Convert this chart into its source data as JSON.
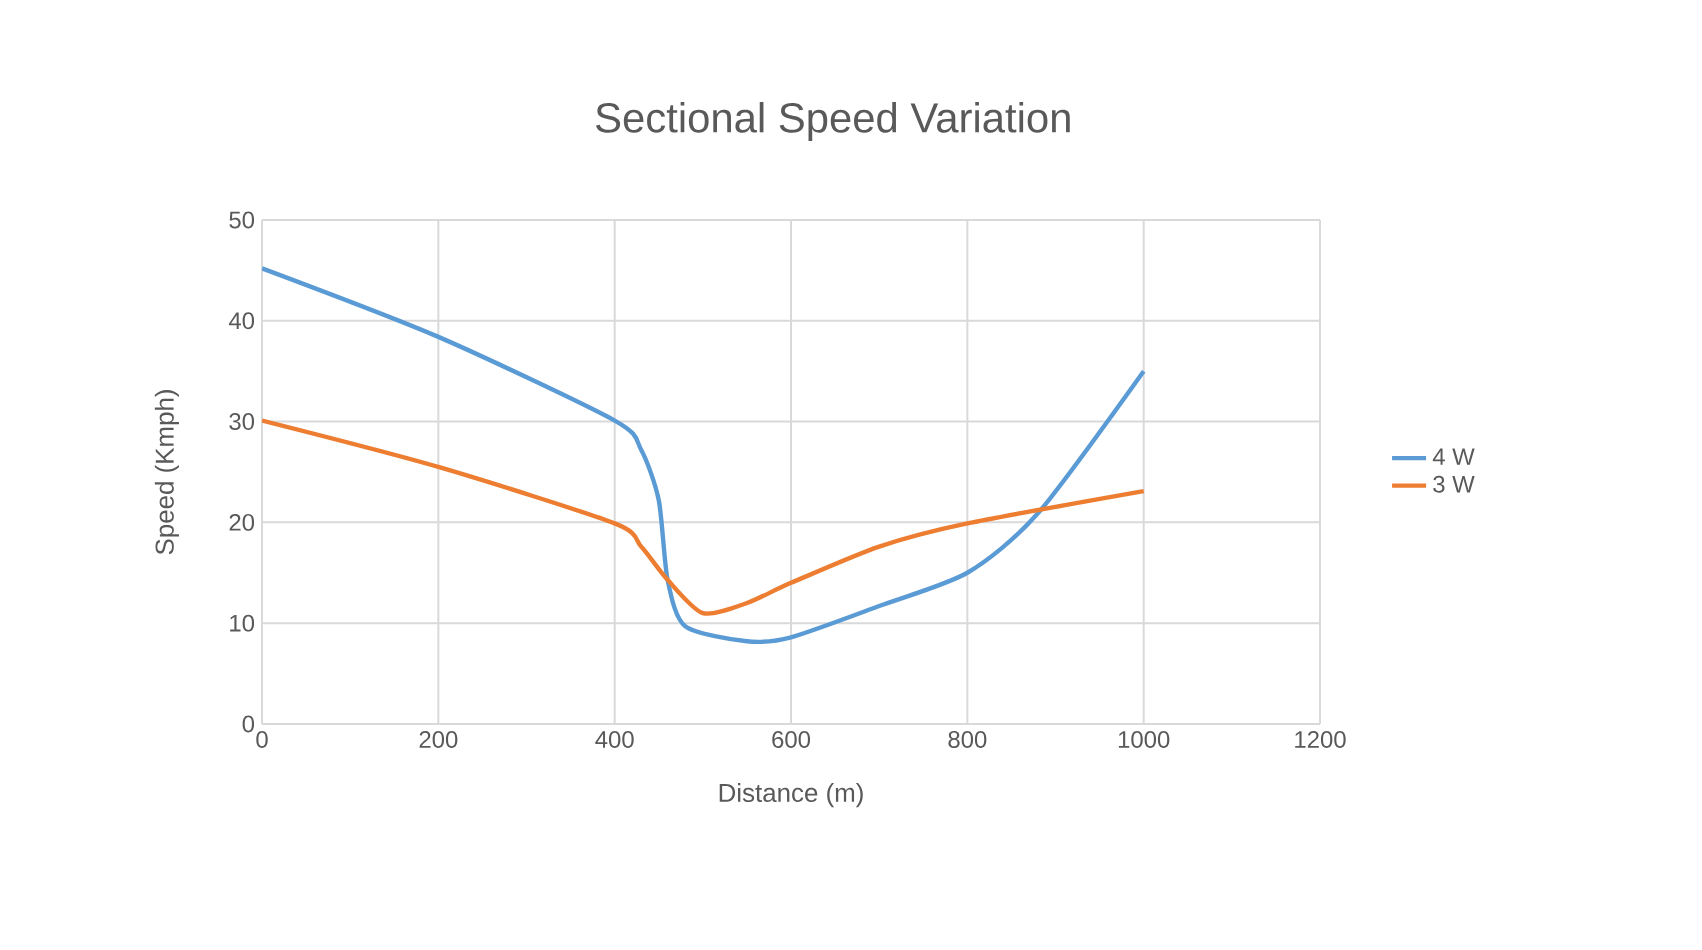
{
  "chart_data": {
    "type": "line",
    "title": "Sectional Speed Variation",
    "xlabel": "Distance (m)",
    "ylabel": "Speed (Kmph)",
    "xlim": [
      0,
      1200
    ],
    "xticks": [
      0,
      200,
      400,
      600,
      800,
      1000,
      1200
    ],
    "ylim": [
      0,
      50
    ],
    "yticks": [
      0,
      10,
      20,
      30,
      40,
      50
    ],
    "grid": true,
    "legend": "right",
    "marker": "none",
    "line_style": "solid",
    "series": [
      {
        "name": "4 W",
        "color": "#5b9bd5",
        "x": [
          0,
          200,
          400,
          430,
          450,
          460,
          480,
          550,
          600,
          700,
          800,
          880,
          1000
        ],
        "values": [
          45.2,
          38.4,
          30.1,
          27.2,
          22.2,
          14.3,
          9.7,
          8.2,
          8.6,
          11.7,
          15,
          20.9,
          35
        ]
      },
      {
        "name": "3 W",
        "color": "#ed7d31",
        "x": [
          0,
          200,
          400,
          430,
          460,
          500,
          550,
          600,
          700,
          800,
          1000
        ],
        "values": [
          30.1,
          25.5,
          19.9,
          17.6,
          14.3,
          11,
          12,
          14,
          17.6,
          19.9,
          23.1
        ]
      }
    ]
  }
}
